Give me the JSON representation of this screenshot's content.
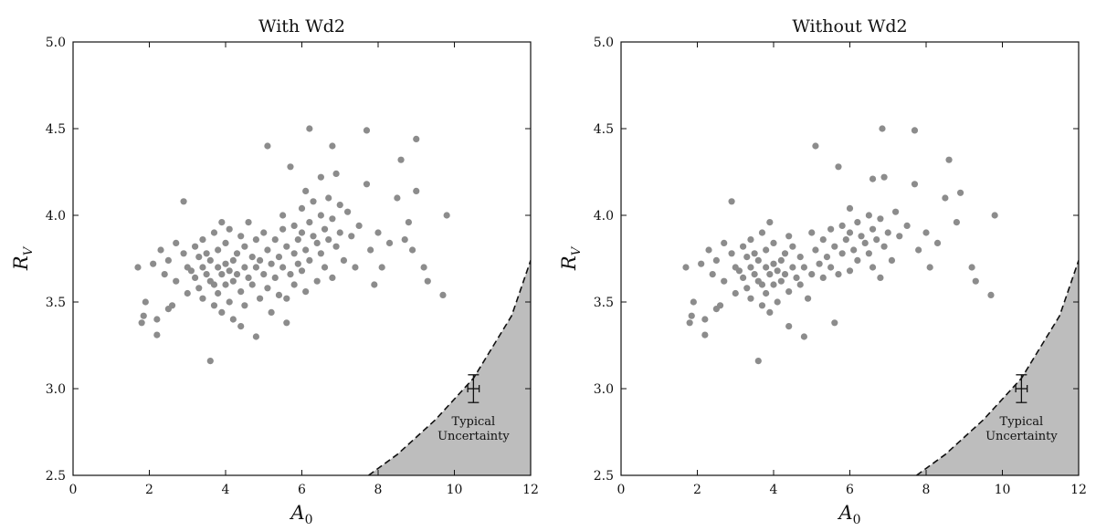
{
  "chart_data": [
    {
      "type": "scatter",
      "title": "With Wd2",
      "xlabel": "A",
      "xlabel_sub": "0",
      "ylabel": "R",
      "ylabel_sub": "V",
      "xlim": [
        0,
        12
      ],
      "ylim": [
        2.5,
        5.0
      ],
      "x_ticks": [
        0,
        2,
        4,
        6,
        8,
        10,
        12
      ],
      "x_tick_labels": [
        "0",
        "2",
        "4",
        "6",
        "8",
        "10",
        "12"
      ],
      "y_ticks": [
        2.5,
        3.0,
        3.5,
        4.0,
        4.5,
        5.0
      ],
      "y_tick_labels": [
        "2.5",
        "3.0",
        "3.5",
        "4.0",
        "4.5",
        "5.0"
      ],
      "grid": false,
      "point_color": "#8c8c8c",
      "shade_color": "#bdbdbd",
      "excluded_boundary": {
        "x": [
          7.75,
          8.5,
          9.5,
          10.5,
          11.5,
          12.0
        ],
        "y": [
          2.5,
          2.62,
          2.82,
          3.06,
          3.42,
          3.74
        ]
      },
      "uncertainty_marker": {
        "x": 10.5,
        "y": 3.0,
        "xerr": 0.15,
        "yerr": 0.08,
        "label_lines": [
          "Typical",
          "Uncertainty"
        ]
      },
      "points": [
        [
          1.7,
          3.7
        ],
        [
          1.8,
          3.38
        ],
        [
          1.85,
          3.42
        ],
        [
          1.9,
          3.5
        ],
        [
          2.1,
          3.72
        ],
        [
          2.2,
          3.31
        ],
        [
          2.2,
          3.4
        ],
        [
          2.3,
          3.8
        ],
        [
          2.4,
          3.66
        ],
        [
          2.5,
          3.74
        ],
        [
          2.5,
          3.46
        ],
        [
          2.6,
          3.48
        ],
        [
          2.7,
          3.84
        ],
        [
          2.7,
          3.62
        ],
        [
          2.9,
          4.08
        ],
        [
          2.9,
          3.78
        ],
        [
          3.0,
          3.7
        ],
        [
          3.0,
          3.55
        ],
        [
          3.1,
          3.68
        ],
        [
          3.2,
          3.82
        ],
        [
          3.2,
          3.64
        ],
        [
          3.3,
          3.76
        ],
        [
          3.3,
          3.58
        ],
        [
          3.4,
          3.7
        ],
        [
          3.4,
          3.86
        ],
        [
          3.4,
          3.52
        ],
        [
          3.5,
          3.66
        ],
        [
          3.5,
          3.78
        ],
        [
          3.6,
          3.62
        ],
        [
          3.6,
          3.16
        ],
        [
          3.6,
          3.74
        ],
        [
          3.7,
          3.9
        ],
        [
          3.7,
          3.6
        ],
        [
          3.7,
          3.48
        ],
        [
          3.8,
          3.7
        ],
        [
          3.8,
          3.8
        ],
        [
          3.8,
          3.55
        ],
        [
          3.9,
          3.66
        ],
        [
          3.9,
          3.96
        ],
        [
          3.9,
          3.44
        ],
        [
          4.0,
          3.72
        ],
        [
          4.0,
          3.6
        ],
        [
          4.0,
          3.84
        ],
        [
          4.1,
          3.68
        ],
        [
          4.1,
          3.5
        ],
        [
          4.1,
          3.92
        ],
        [
          4.2,
          3.74
        ],
        [
          4.2,
          3.62
        ],
        [
          4.2,
          3.4
        ],
        [
          4.3,
          3.78
        ],
        [
          4.3,
          3.66
        ],
        [
          4.4,
          3.88
        ],
        [
          4.4,
          3.56
        ],
        [
          4.5,
          3.7
        ],
        [
          4.5,
          3.82
        ],
        [
          4.5,
          3.48
        ],
        [
          4.6,
          3.64
        ],
        [
          4.6,
          3.96
        ],
        [
          4.7,
          3.76
        ],
        [
          4.7,
          3.6
        ],
        [
          4.8,
          3.3
        ],
        [
          4.8,
          3.86
        ],
        [
          4.8,
          3.7
        ],
        [
          4.9,
          3.52
        ],
        [
          4.9,
          3.74
        ],
        [
          5.0,
          3.66
        ],
        [
          5.0,
          3.9
        ],
        [
          5.1,
          3.58
        ],
        [
          5.1,
          3.8
        ],
        [
          5.1,
          4.4
        ],
        [
          5.2,
          3.72
        ],
        [
          5.2,
          3.44
        ],
        [
          5.3,
          3.86
        ],
        [
          5.3,
          3.64
        ],
        [
          5.4,
          3.76
        ],
        [
          5.4,
          3.54
        ],
        [
          5.5,
          3.92
        ],
        [
          5.5,
          3.7
        ],
        [
          5.5,
          4.0
        ],
        [
          5.6,
          3.82
        ],
        [
          5.6,
          3.38
        ],
        [
          5.7,
          3.66
        ],
        [
          5.7,
          4.28
        ],
        [
          5.8,
          3.78
        ],
        [
          5.8,
          3.94
        ],
        [
          5.8,
          3.6
        ],
        [
          5.9,
          3.86
        ],
        [
          5.9,
          3.72
        ],
        [
          6.0,
          4.04
        ],
        [
          6.0,
          3.9
        ],
        [
          6.0,
          3.68
        ],
        [
          6.1,
          4.14
        ],
        [
          6.1,
          3.8
        ],
        [
          6.1,
          3.56
        ],
        [
          6.2,
          4.5
        ],
        [
          6.2,
          3.96
        ],
        [
          6.2,
          3.74
        ],
        [
          6.3,
          3.88
        ],
        [
          6.3,
          4.08
        ],
        [
          6.4,
          3.84
        ],
        [
          6.4,
          3.62
        ],
        [
          6.5,
          4.0
        ],
        [
          6.5,
          3.78
        ],
        [
          6.5,
          4.22
        ],
        [
          6.6,
          3.92
        ],
        [
          6.6,
          3.7
        ],
        [
          6.7,
          4.1
        ],
        [
          6.7,
          3.86
        ],
        [
          6.8,
          4.4
        ],
        [
          6.8,
          3.98
        ],
        [
          6.8,
          3.64
        ],
        [
          6.9,
          4.24
        ],
        [
          6.9,
          3.82
        ],
        [
          7.0,
          4.06
        ],
        [
          7.0,
          3.9
        ],
        [
          7.1,
          3.74
        ],
        [
          7.2,
          4.02
        ],
        [
          7.3,
          3.88
        ],
        [
          7.4,
          3.7
        ],
        [
          7.5,
          3.94
        ],
        [
          7.7,
          4.49
        ],
        [
          7.7,
          4.18
        ],
        [
          7.8,
          3.8
        ],
        [
          7.9,
          3.6
        ],
        [
          8.0,
          3.9
        ],
        [
          8.1,
          3.7
        ],
        [
          8.3,
          3.84
        ],
        [
          8.5,
          4.1
        ],
        [
          8.6,
          4.32
        ],
        [
          8.7,
          3.86
        ],
        [
          8.8,
          3.96
        ],
        [
          8.9,
          3.8
        ],
        [
          9.0,
          4.44
        ],
        [
          9.0,
          4.14
        ],
        [
          9.2,
          3.7
        ],
        [
          9.3,
          3.62
        ],
        [
          9.7,
          3.54
        ],
        [
          9.8,
          4.0
        ],
        [
          4.4,
          3.36
        ],
        [
          5.6,
          3.52
        ]
      ]
    },
    {
      "type": "scatter",
      "title": "Without Wd2",
      "xlabel": "A",
      "xlabel_sub": "0",
      "ylabel": "R",
      "ylabel_sub": "V",
      "xlim": [
        0,
        12
      ],
      "ylim": [
        2.5,
        5.0
      ],
      "x_ticks": [
        0,
        2,
        4,
        6,
        8,
        10,
        12
      ],
      "x_tick_labels": [
        "0",
        "2",
        "4",
        "6",
        "8",
        "10",
        "12"
      ],
      "y_ticks": [
        2.5,
        3.0,
        3.5,
        4.0,
        4.5,
        5.0
      ],
      "y_tick_labels": [
        "2.5",
        "3.0",
        "3.5",
        "4.0",
        "4.5",
        "5.0"
      ],
      "grid": false,
      "point_color": "#8c8c8c",
      "shade_color": "#bdbdbd",
      "excluded_boundary": {
        "x": [
          7.75,
          8.5,
          9.5,
          10.5,
          11.5,
          12.0
        ],
        "y": [
          2.5,
          2.62,
          2.82,
          3.06,
          3.42,
          3.74
        ]
      },
      "uncertainty_marker": {
        "x": 10.5,
        "y": 3.0,
        "xerr": 0.15,
        "yerr": 0.08,
        "label_lines": [
          "Typical",
          "Uncertainty"
        ]
      },
      "points": [
        [
          1.7,
          3.7
        ],
        [
          1.8,
          3.38
        ],
        [
          1.85,
          3.42
        ],
        [
          1.9,
          3.5
        ],
        [
          2.1,
          3.72
        ],
        [
          2.2,
          3.31
        ],
        [
          2.2,
          3.4
        ],
        [
          2.3,
          3.8
        ],
        [
          2.4,
          3.66
        ],
        [
          2.5,
          3.74
        ],
        [
          2.5,
          3.46
        ],
        [
          2.6,
          3.48
        ],
        [
          2.7,
          3.84
        ],
        [
          2.7,
          3.62
        ],
        [
          2.9,
          4.08
        ],
        [
          2.9,
          3.78
        ],
        [
          3.0,
          3.7
        ],
        [
          3.0,
          3.55
        ],
        [
          3.1,
          3.68
        ],
        [
          3.2,
          3.82
        ],
        [
          3.2,
          3.64
        ],
        [
          3.3,
          3.76
        ],
        [
          3.3,
          3.58
        ],
        [
          3.4,
          3.7
        ],
        [
          3.4,
          3.86
        ],
        [
          3.4,
          3.52
        ],
        [
          3.5,
          3.66
        ],
        [
          3.5,
          3.78
        ],
        [
          3.6,
          3.62
        ],
        [
          3.6,
          3.16
        ],
        [
          3.6,
          3.74
        ],
        [
          3.7,
          3.9
        ],
        [
          3.7,
          3.6
        ],
        [
          3.7,
          3.48
        ],
        [
          3.8,
          3.7
        ],
        [
          3.8,
          3.8
        ],
        [
          3.8,
          3.55
        ],
        [
          3.9,
          3.66
        ],
        [
          3.9,
          3.96
        ],
        [
          3.9,
          3.44
        ],
        [
          4.0,
          3.72
        ],
        [
          4.0,
          3.6
        ],
        [
          4.0,
          3.84
        ],
        [
          4.1,
          3.68
        ],
        [
          4.1,
          3.5
        ],
        [
          4.2,
          3.74
        ],
        [
          4.2,
          3.62
        ],
        [
          4.3,
          3.78
        ],
        [
          4.3,
          3.66
        ],
        [
          4.4,
          3.88
        ],
        [
          4.4,
          3.56
        ],
        [
          4.5,
          3.7
        ],
        [
          4.5,
          3.82
        ],
        [
          4.6,
          3.64
        ],
        [
          4.7,
          3.76
        ],
        [
          4.7,
          3.6
        ],
        [
          4.8,
          3.3
        ],
        [
          4.8,
          3.7
        ],
        [
          4.9,
          3.52
        ],
        [
          5.0,
          3.66
        ],
        [
          5.0,
          3.9
        ],
        [
          5.1,
          3.8
        ],
        [
          5.1,
          4.4
        ],
        [
          5.2,
          3.72
        ],
        [
          5.3,
          3.86
        ],
        [
          5.3,
          3.64
        ],
        [
          5.4,
          3.76
        ],
        [
          5.5,
          3.92
        ],
        [
          5.5,
          3.7
        ],
        [
          5.6,
          3.82
        ],
        [
          5.6,
          3.38
        ],
        [
          5.7,
          3.66
        ],
        [
          5.7,
          4.28
        ],
        [
          5.8,
          3.78
        ],
        [
          5.8,
          3.94
        ],
        [
          5.9,
          3.86
        ],
        [
          6.0,
          4.04
        ],
        [
          6.0,
          3.9
        ],
        [
          6.0,
          3.68
        ],
        [
          6.1,
          3.8
        ],
        [
          6.2,
          3.96
        ],
        [
          6.2,
          3.74
        ],
        [
          6.3,
          3.88
        ],
        [
          6.4,
          3.84
        ],
        [
          6.5,
          4.0
        ],
        [
          6.5,
          3.78
        ],
        [
          6.6,
          3.92
        ],
        [
          6.6,
          3.7
        ],
        [
          6.7,
          3.86
        ],
        [
          6.8,
          3.98
        ],
        [
          6.8,
          3.64
        ],
        [
          6.9,
          4.22
        ],
        [
          6.9,
          3.82
        ],
        [
          7.0,
          3.9
        ],
        [
          7.1,
          3.74
        ],
        [
          7.2,
          4.02
        ],
        [
          7.3,
          3.88
        ],
        [
          7.5,
          3.94
        ],
        [
          7.7,
          4.49
        ],
        [
          7.7,
          4.18
        ],
        [
          7.8,
          3.8
        ],
        [
          8.0,
          3.9
        ],
        [
          8.1,
          3.7
        ],
        [
          8.3,
          3.84
        ],
        [
          8.5,
          4.1
        ],
        [
          8.6,
          4.32
        ],
        [
          8.8,
          3.96
        ],
        [
          8.9,
          4.13
        ],
        [
          9.2,
          3.7
        ],
        [
          9.3,
          3.62
        ],
        [
          9.7,
          3.54
        ],
        [
          9.8,
          4.0
        ],
        [
          6.85,
          4.5
        ],
        [
          4.4,
          3.36
        ],
        [
          6.6,
          4.21
        ]
      ]
    }
  ]
}
